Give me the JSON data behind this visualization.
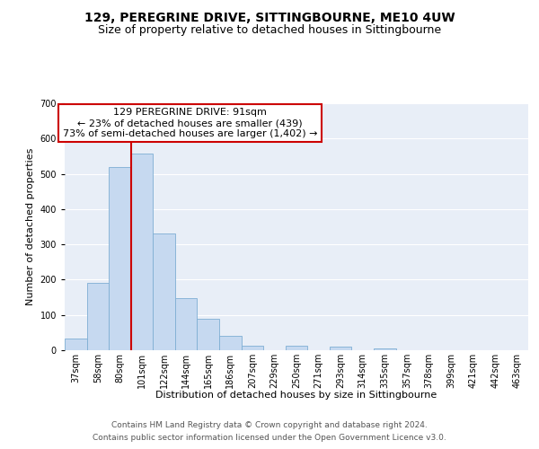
{
  "title": "129, PEREGRINE DRIVE, SITTINGBOURNE, ME10 4UW",
  "subtitle": "Size of property relative to detached houses in Sittingbourne",
  "xlabel": "Distribution of detached houses by size in Sittingbourne",
  "ylabel": "Number of detached properties",
  "bar_labels": [
    "37sqm",
    "58sqm",
    "80sqm",
    "101sqm",
    "122sqm",
    "144sqm",
    "165sqm",
    "186sqm",
    "207sqm",
    "229sqm",
    "250sqm",
    "271sqm",
    "293sqm",
    "314sqm",
    "335sqm",
    "357sqm",
    "378sqm",
    "399sqm",
    "421sqm",
    "442sqm",
    "463sqm"
  ],
  "bar_values": [
    33,
    190,
    519,
    558,
    332,
    147,
    88,
    42,
    12,
    0,
    12,
    0,
    10,
    0,
    5,
    0,
    0,
    0,
    0,
    0,
    0
  ],
  "bar_color": "#c6d9f0",
  "bar_edge_color": "#7eaed3",
  "vline_x_idx": 2.5,
  "vline_color": "#cc0000",
  "ylim": [
    0,
    700
  ],
  "yticks": [
    0,
    100,
    200,
    300,
    400,
    500,
    600,
    700
  ],
  "annotation_text": "129 PEREGRINE DRIVE: 91sqm\n← 23% of detached houses are smaller (439)\n73% of semi-detached houses are larger (1,402) →",
  "annotation_box_color": "#ffffff",
  "annotation_box_edge": "#cc0000",
  "footer_line1": "Contains HM Land Registry data © Crown copyright and database right 2024.",
  "footer_line2": "Contains public sector information licensed under the Open Government Licence v3.0.",
  "bg_color": "#ffffff",
  "plot_bg_color": "#e8eef7",
  "grid_color": "#ffffff",
  "title_fontsize": 10,
  "subtitle_fontsize": 9,
  "axis_label_fontsize": 8,
  "tick_fontsize": 7,
  "footer_fontsize": 6.5,
  "annot_fontsize": 8
}
